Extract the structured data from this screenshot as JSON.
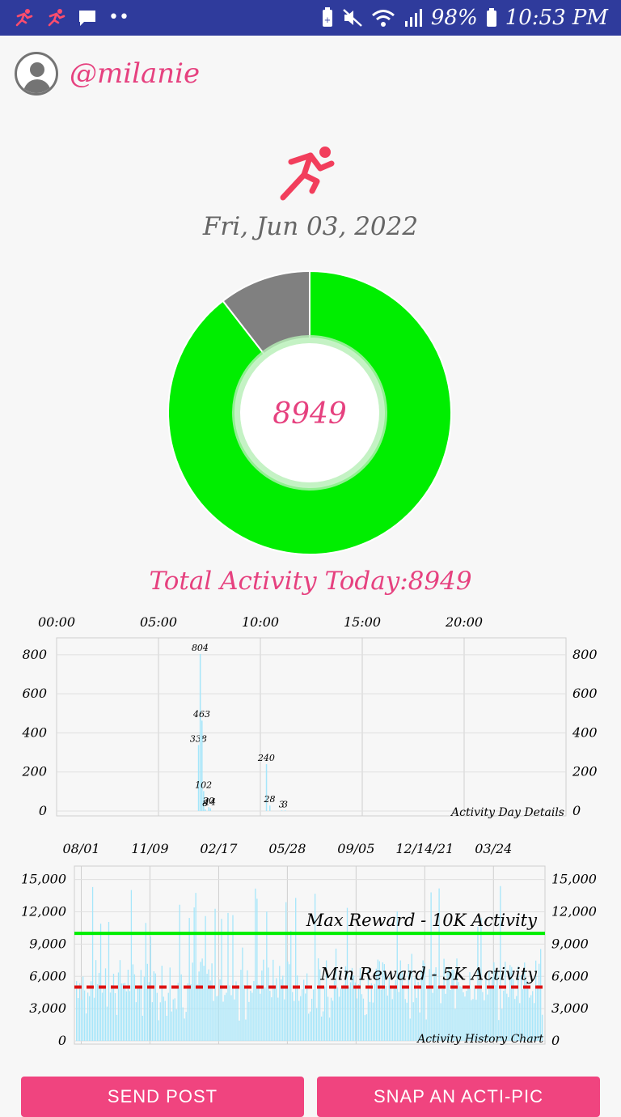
{
  "status_bar": {
    "battery": "98%",
    "time": "10:53 PM"
  },
  "profile": {
    "username": "@milanie"
  },
  "date": "Fri, Jun 03, 2022",
  "today": {
    "steps_label": "8949",
    "total_label": "Total Activity Today:8949"
  },
  "colors": {
    "accent": "#e6417f",
    "goal_green": "#00ee00",
    "remaining_gray": "#808080",
    "bar": "#a6e6fa",
    "status_bar": "#2f3b9c"
  },
  "chart_data": [
    {
      "type": "pie",
      "values": [
        8949,
        1051
      ],
      "labels": [
        "",
        ""
      ]
    },
    {
      "type": "bar",
      "title": "",
      "caption": "Activity Day Details",
      "x_ticks": [
        "00:00",
        "05:00",
        "10:00",
        "15:00",
        "20:00"
      ],
      "y_ticks": [
        "0",
        "200",
        "400",
        "600",
        "800"
      ],
      "ylim": [
        0,
        870
      ],
      "values": [
        0,
        0,
        0,
        0,
        0,
        0,
        0,
        0,
        0,
        0,
        0,
        0,
        0,
        0,
        0,
        0,
        0,
        0,
        0,
        0,
        0,
        0,
        0,
        0,
        0,
        0,
        0,
        0,
        0,
        0,
        0,
        0,
        0,
        0,
        0,
        0,
        0,
        0,
        0,
        0,
        0,
        0,
        0,
        0,
        0,
        0,
        0,
        0,
        0,
        0,
        0,
        0,
        0,
        0,
        0,
        0,
        0,
        0,
        0,
        0,
        0,
        0,
        0,
        0,
        0,
        0,
        0,
        0,
        0,
        0,
        0,
        0,
        0,
        0,
        0,
        0,
        0,
        0,
        0,
        0,
        0,
        0,
        0,
        338,
        804,
        463,
        102,
        8,
        0,
        20,
        14,
        0,
        0,
        0,
        0,
        0,
        0,
        0,
        0,
        0,
        0,
        0,
        0,
        0,
        0,
        0,
        0,
        0,
        0,
        0,
        0,
        0,
        0,
        0,
        0,
        0,
        0,
        0,
        0,
        0,
        0,
        0,
        0,
        240,
        0,
        28,
        0,
        0,
        0,
        0,
        0,
        0,
        3,
        0,
        3,
        0,
        0,
        0,
        0,
        0,
        0,
        0,
        0,
        0,
        0,
        0,
        0,
        0,
        0,
        0,
        0,
        0,
        0,
        0,
        0,
        0,
        0,
        0,
        0,
        0,
        0,
        0,
        0,
        0,
        0,
        0,
        0,
        0,
        0,
        0,
        0,
        0,
        0,
        0,
        0,
        0,
        0,
        0,
        0,
        0,
        0,
        0,
        0,
        0,
        0,
        0,
        0,
        0,
        0,
        0,
        0,
        0,
        0,
        0,
        0,
        0,
        0,
        0,
        0,
        0,
        0,
        0,
        0,
        0,
        0,
        0,
        0,
        0,
        0,
        0,
        0,
        0,
        0,
        0,
        0,
        0,
        0,
        0,
        0,
        0,
        0,
        0,
        0,
        0,
        0,
        0,
        0,
        0,
        0,
        0,
        0,
        0,
        0,
        0,
        0,
        0,
        0,
        0,
        0,
        0,
        0,
        0,
        0,
        0,
        0,
        0,
        0,
        0,
        0,
        0,
        0,
        0,
        0,
        0,
        0,
        0,
        0,
        0,
        0,
        0,
        0,
        0,
        0,
        0,
        0,
        0,
        0,
        0,
        0,
        0,
        0,
        0,
        0,
        0,
        0,
        0,
        0,
        0,
        0,
        0,
        0,
        0,
        0,
        0,
        0,
        0,
        0,
        0,
        0,
        0,
        0,
        0,
        0,
        0,
        0,
        0,
        0,
        0,
        0,
        0
      ]
    },
    {
      "type": "bar",
      "title": "",
      "caption": "Activity History Chart",
      "x_ticks": [
        "08/01",
        "11/09",
        "02/17",
        "05/28",
        "09/05",
        "12/14/21",
        "03/24"
      ],
      "y_ticks": [
        "0",
        "3,000",
        "6,000",
        "9,000",
        "12,000",
        "15,000"
      ],
      "ylim": [
        0,
        15500
      ],
      "reference_lines": [
        {
          "label": "Max Reward - 10K Activity",
          "value": 10000,
          "style": "solid",
          "color": "#00ee00"
        },
        {
          "label": "Min Reward - 5K Activity",
          "value": 5000,
          "style": "dashed",
          "color": "#dd1111"
        }
      ],
      "series_summary": "daily values, roughly 2,000 to 15,000"
    }
  ],
  "buttons": {
    "send_post": "SEND POST",
    "snap": "SNAP AN ACTI-PIC"
  }
}
